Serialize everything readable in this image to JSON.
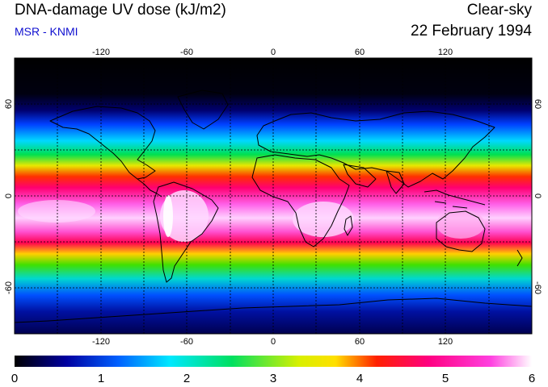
{
  "header": {
    "title": "DNA-damage UV dose (kJ/m2)",
    "subtitle": "MSR - KNMI",
    "product": "Clear-sky",
    "date": "22 February 1994"
  },
  "map": {
    "projection": "equirectangular",
    "lon_range": [
      -180,
      180
    ],
    "lat_range": [
      -90,
      90
    ],
    "grid_lines": "dotted every 30 degrees",
    "lon_ticks": [
      "-120",
      "-60",
      "0",
      "60",
      "120"
    ],
    "lat_ticks": [
      "60",
      "0",
      "-60"
    ],
    "colors": {
      "background": "#ffffff",
      "coastline": "#000000",
      "subtitle": "#1010d0"
    }
  },
  "colorbar": {
    "min": 0,
    "max": 6,
    "tick_labels": [
      "0",
      "1",
      "2",
      "3",
      "4",
      "5",
      "6"
    ],
    "stops": [
      "#000000",
      "#0000a0",
      "#0060ff",
      "#00e8ff",
      "#00e060",
      "#d8f000",
      "#ffe000",
      "#ff2000",
      "#ff0080",
      "#ff40e0",
      "#ffffff"
    ]
  }
}
